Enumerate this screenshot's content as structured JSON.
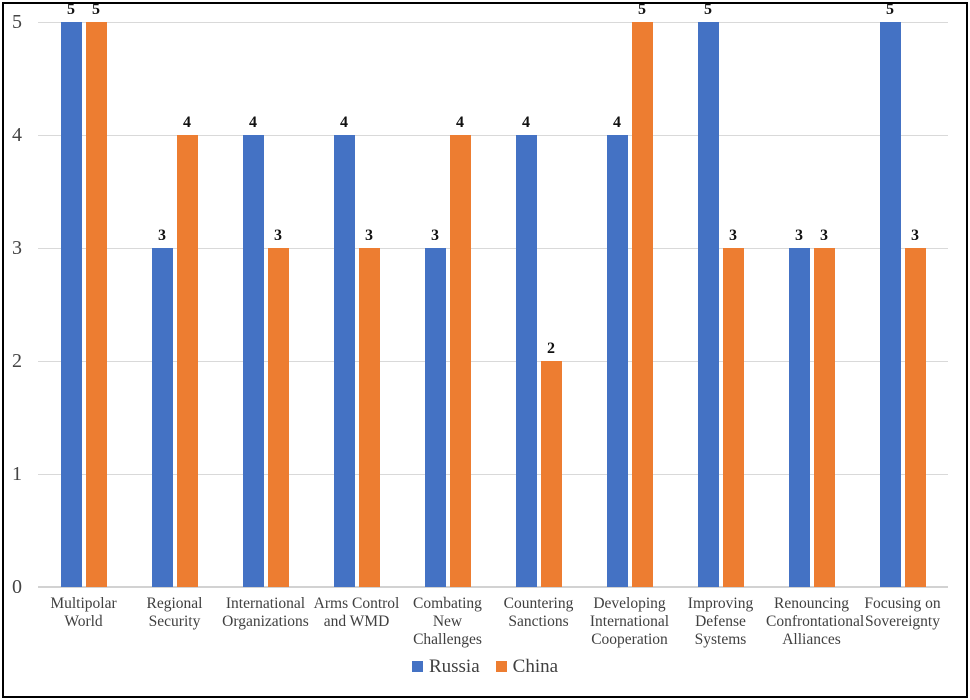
{
  "chart": {
    "background_color": "#ffffff",
    "frame_border_color": "#000000",
    "grid_color": "#d9d9d9",
    "axis_line_color": "#d2d2d2",
    "tick_label_color": "#444444",
    "category_label_color": "#404040",
    "data_label_color": "#111111"
  },
  "chart_data": {
    "type": "bar",
    "title": "",
    "xlabel": "",
    "ylabel": "",
    "categories": [
      "Multipolar World",
      "Regional Security",
      "International Organizations",
      "Arms Control and WMD",
      "Combating New Challenges",
      "Countering Sanctions",
      "Developing International Cooperation",
      "Improving Defense Systems",
      "Renouncing Confrontational Alliances",
      "Focusing on Sovereignty"
    ],
    "series": [
      {
        "name": "Russia",
        "color": "#4472C4",
        "values": [
          5,
          3,
          4,
          4,
          3,
          4,
          4,
          5,
          3,
          5
        ]
      },
      {
        "name": "China",
        "color": "#ED7D31",
        "values": [
          5,
          4,
          3,
          3,
          4,
          2,
          5,
          3,
          3,
          3
        ]
      }
    ],
    "ylim": [
      0,
      5
    ],
    "yticks": [
      0,
      1,
      2,
      3,
      4,
      5
    ],
    "grid": "horizontal",
    "legend_position": "bottom",
    "data_labels": true
  }
}
